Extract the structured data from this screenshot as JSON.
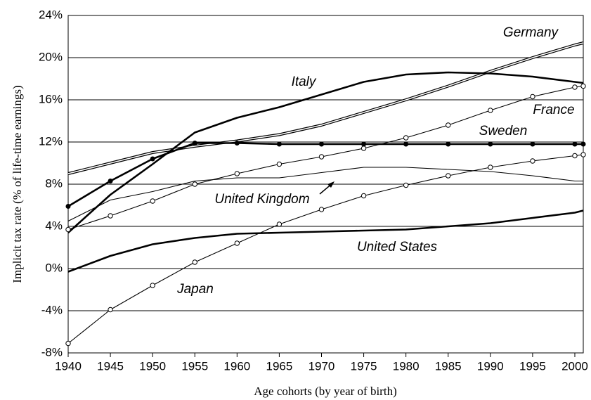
{
  "chart_data": {
    "type": "line",
    "x_label": "Age cohorts (by year of birth)",
    "y_label": "Implicit tax rate (% of life-time earnings)",
    "x": [
      1940,
      1945,
      1950,
      1955,
      1960,
      1965,
      1970,
      1975,
      1980,
      1985,
      1990,
      1995,
      2000,
      2001
    ],
    "series": [
      {
        "name": "Germany",
        "color": "#000000",
        "line": "double",
        "marker": "none",
        "values": [
          9.0,
          10.0,
          11.0,
          11.6,
          12.1,
          12.7,
          13.6,
          14.8,
          16.0,
          17.3,
          18.7,
          20.0,
          21.2,
          21.4
        ]
      },
      {
        "name": "Italy",
        "color": "#000000",
        "line": "thick",
        "marker": "none",
        "values": [
          3.4,
          7.0,
          9.9,
          12.9,
          14.3,
          15.3,
          16.5,
          17.7,
          18.4,
          18.6,
          18.5,
          18.2,
          17.7,
          17.6
        ]
      },
      {
        "name": "France",
        "color": "#000000",
        "line": "thin",
        "marker": "open",
        "values": [
          3.7,
          5.0,
          6.4,
          8.0,
          9.0,
          9.9,
          10.6,
          11.4,
          12.4,
          13.6,
          15.0,
          16.3,
          17.2,
          17.3
        ]
      },
      {
        "name": "Sweden",
        "color": "#000000",
        "line": "thick",
        "marker": "filled",
        "values": [
          5.9,
          8.3,
          10.4,
          11.9,
          11.9,
          11.8,
          11.8,
          11.8,
          11.8,
          11.8,
          11.8,
          11.8,
          11.8,
          11.8
        ]
      },
      {
        "name": "United Kingdom",
        "color": "#000000",
        "line": "thin",
        "marker": "none",
        "values": [
          4.5,
          6.5,
          7.3,
          8.3,
          8.6,
          8.6,
          9.1,
          9.6,
          9.6,
          9.4,
          9.2,
          8.8,
          8.3,
          8.3
        ]
      },
      {
        "name": "United States",
        "color": "#000000",
        "line": "thick",
        "marker": "none",
        "values": [
          -0.3,
          1.2,
          2.3,
          2.9,
          3.3,
          3.4,
          3.5,
          3.6,
          3.7,
          4.0,
          4.3,
          4.8,
          5.3,
          5.5
        ]
      },
      {
        "name": "Japan",
        "color": "#000000",
        "line": "thin",
        "marker": "open",
        "values": [
          -7.1,
          -3.9,
          -1.6,
          0.6,
          2.4,
          4.2,
          5.6,
          6.9,
          7.9,
          8.8,
          9.6,
          10.2,
          10.7,
          10.8
        ]
      }
    ],
    "xlim": [
      1940,
      2001
    ],
    "xticks": [
      1940,
      1945,
      1950,
      1955,
      1960,
      1965,
      1970,
      1975,
      1980,
      1985,
      1990,
      1995,
      2000
    ],
    "ylim": [
      -8,
      24
    ],
    "yticks": [
      {
        "value": -8,
        "label": "-8%"
      },
      {
        "value": -4,
        "label": "-4%"
      },
      {
        "value": 0,
        "label": "0%"
      },
      {
        "value": 4,
        "label": "4%"
      },
      {
        "value": 8,
        "label": "8%"
      },
      {
        "value": 12,
        "label": "12%"
      },
      {
        "value": 16,
        "label": "16%"
      },
      {
        "value": 20,
        "label": "20%"
      },
      {
        "value": 24,
        "label": "24%"
      }
    ],
    "grid": true
  }
}
